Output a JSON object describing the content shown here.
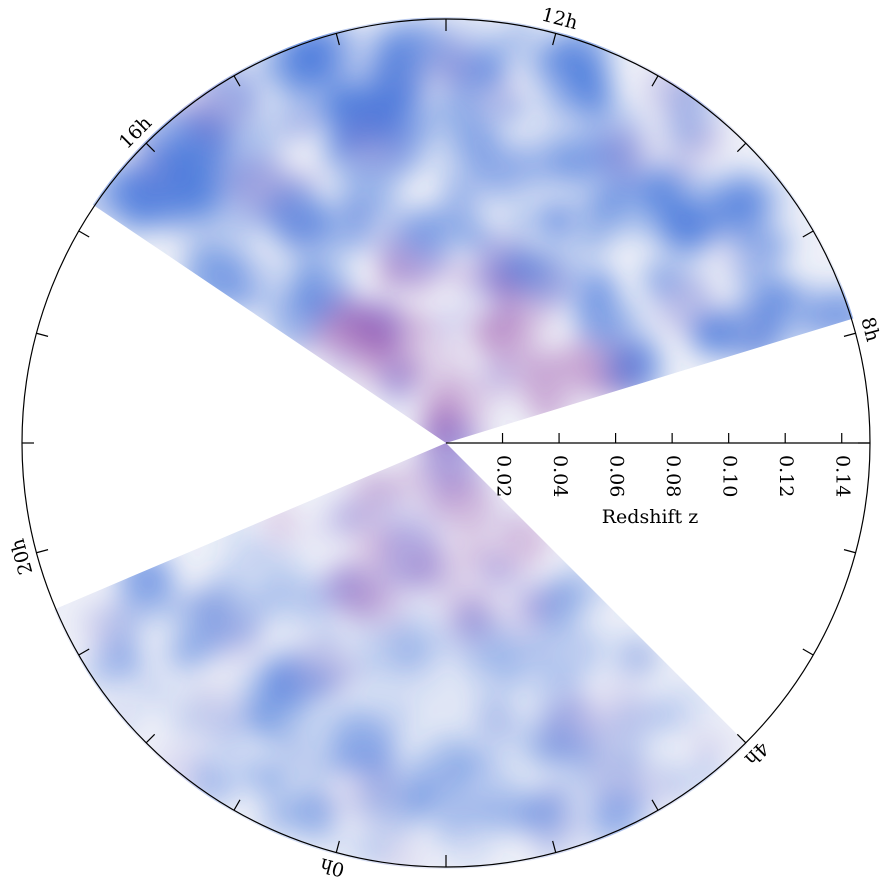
{
  "chart_data": {
    "type": "polar-wedge",
    "xlabel": "Redshift z",
    "rlim": [
      0,
      0.15
    ],
    "rticks": [
      0.02,
      0.04,
      0.06,
      0.08,
      {
        "value": 0.1,
        "label": "0.10"
      },
      0.12,
      0.14
    ],
    "hticks": [
      0,
      1,
      2,
      3,
      4,
      5,
      6,
      7,
      8,
      9,
      10,
      11,
      12,
      13,
      14,
      15,
      16,
      17,
      18,
      19,
      20,
      21,
      22,
      23
    ],
    "hlabels": [
      {
        "value": 12,
        "label": "12h"
      },
      {
        "value": 8,
        "label": "8h"
      },
      {
        "value": 4,
        "label": "4h"
      },
      {
        "value": 0,
        "label": "0h"
      },
      {
        "value": 20,
        "label": "20h"
      },
      {
        "value": 16,
        "label": "16h"
      }
    ]
  }
}
